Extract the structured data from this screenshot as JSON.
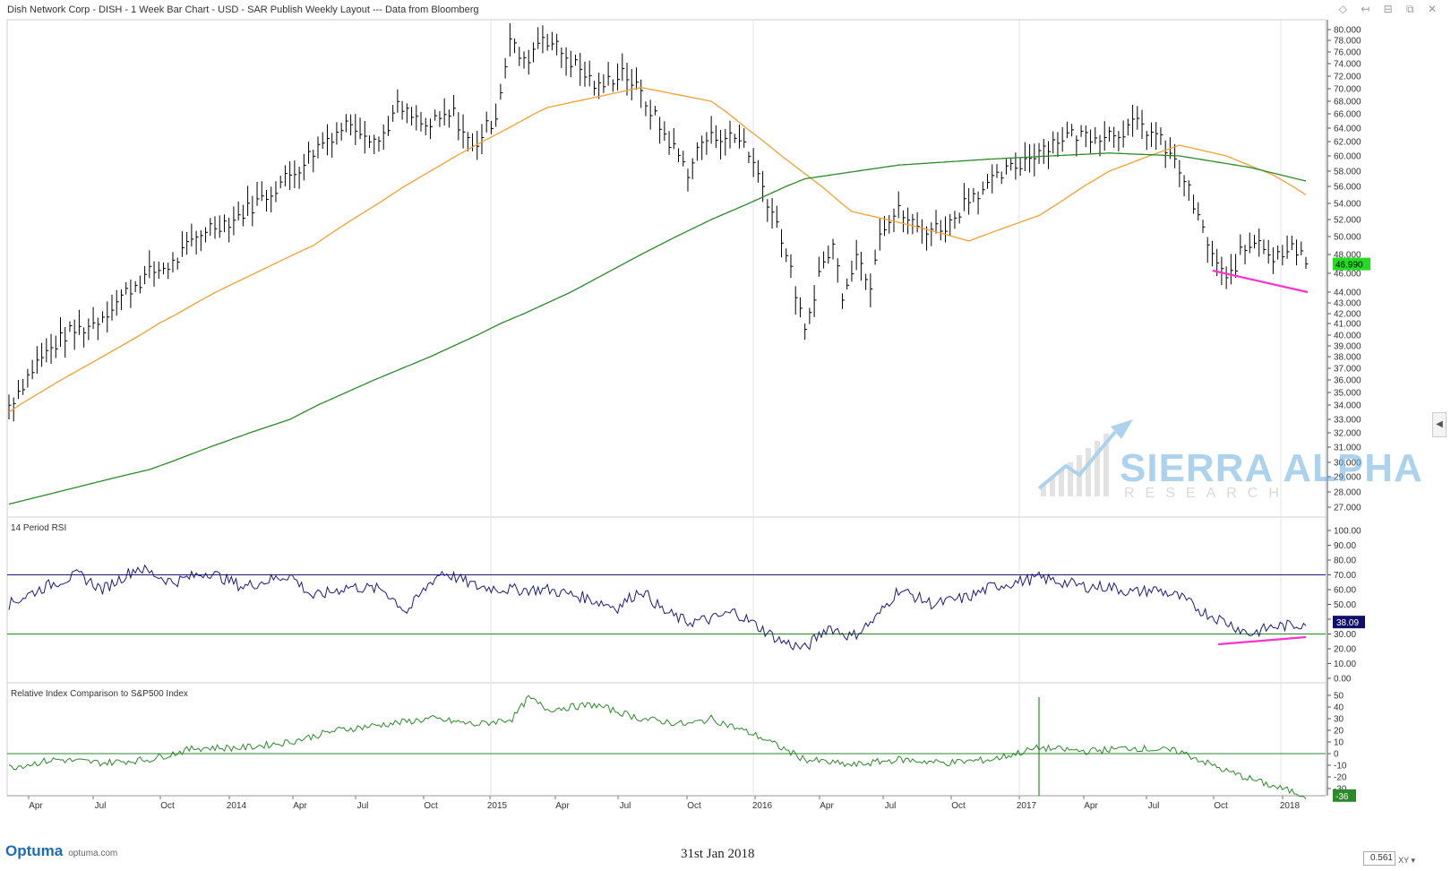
{
  "header": {
    "title": "Dish Network Corp - DISH - 1 Week Bar Chart - USD - SAR Publish Weekly Layout --- Data from Bloomberg"
  },
  "footer": {
    "brand": "Optuma",
    "brand_url": "optuma.com",
    "date": "31st Jan 2018",
    "zoom": "0.561"
  },
  "watermark": {
    "line1": "SIERRA ALPHA",
    "line2": "RESEARCH"
  },
  "chart_data": [
    {
      "type": "bar",
      "title": "Dish Network Corp - DISH - 1 Week Bar Chart",
      "ylim": [
        27,
        81
      ],
      "y_ticks": [
        "27.000",
        "28.000",
        "29.000",
        "30.000",
        "31.000",
        "32.000",
        "33.000",
        "34.000",
        "35.000",
        "36.000",
        "37.000",
        "38.000",
        "39.000",
        "40.000",
        "41.000",
        "42.000",
        "43.000",
        "44.000",
        "46.000",
        "48.000",
        "50.000",
        "52.000",
        "54.000",
        "56.000",
        "58.000",
        "60.000",
        "62.000",
        "64.000",
        "66.000",
        "68.000",
        "70.000",
        "72.000",
        "74.000",
        "76.000",
        "78.000",
        "80.000"
      ],
      "last_price": "46.990",
      "series": [
        {
          "name": "",
          "role": "price",
          "color": "#000000"
        },
        {
          "name": "",
          "role": "ma-short",
          "color": "#f5a033"
        },
        {
          "name": "",
          "role": "ma-long",
          "color": "#2a8a2a"
        }
      ],
      "x_labels": [
        "Apr",
        "Jul",
        "Oct",
        "2014",
        "Apr",
        "Jul",
        "Oct",
        "2015",
        "Apr",
        "Jul",
        "Oct",
        "2016",
        "Apr",
        "Jul",
        "Oct",
        "2017",
        "Apr",
        "Jul",
        "Oct",
        "2018"
      ],
      "trendline_color": "#ff33cc"
    },
    {
      "type": "line",
      "title": "14 Period RSI",
      "ylim": [
        0,
        100
      ],
      "y_ticks": [
        "0.00",
        "10.00",
        "20.00",
        "30.00",
        "40.00",
        "50.00",
        "60.00",
        "70.00",
        "80.00",
        "90.00",
        "100.00"
      ],
      "reference_lines": [
        70,
        30
      ],
      "last_value": "38.09",
      "color": "#1a1a80"
    },
    {
      "type": "line",
      "title": "Relative Index Comparison to S&P500 Index",
      "ylim": [
        -36,
        55
      ],
      "y_ticks": [
        "-30",
        "-20",
        "-10",
        "0",
        "10",
        "20",
        "30",
        "40",
        "50"
      ],
      "reference_lines": [
        0
      ],
      "last_value": "-36",
      "color": "#2a8a2a"
    }
  ]
}
